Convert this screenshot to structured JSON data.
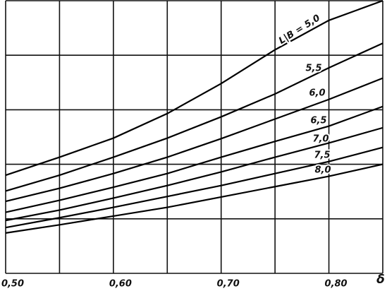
{
  "chart_data": {
    "type": "line",
    "x_label": "δ",
    "x": [
      0.5,
      0.55,
      0.6,
      0.65,
      0.7,
      0.75,
      0.8,
      0.85
    ],
    "xlim": [
      0.5,
      0.85
    ],
    "xticks": [
      {
        "value": 0.5,
        "label": "0,50"
      },
      {
        "value": 0.6,
        "label": "0,60"
      },
      {
        "value": 0.7,
        "label": "0,70"
      },
      {
        "value": 0.8,
        "label": "0,80"
      }
    ],
    "xgrid": [
      0.5,
      0.55,
      0.6,
      0.65,
      0.7,
      0.75,
      0.8,
      0.85
    ],
    "ylim": [
      0,
      5
    ],
    "yticks": [
      0,
      1,
      2,
      3,
      4,
      5
    ],
    "grid": true,
    "series": [
      {
        "name": "L|B = 5,0",
        "color": "#000000",
        "values": [
          1.8,
          2.13,
          2.48,
          2.93,
          3.48,
          4.1,
          4.64,
          5.0
        ]
      },
      {
        "name": "5,5",
        "color": "#000000",
        "values": [
          1.51,
          1.8,
          2.13,
          2.48,
          2.87,
          3.29,
          3.77,
          4.22
        ]
      },
      {
        "name": "6,0",
        "color": "#000000",
        "values": [
          1.32,
          1.56,
          1.83,
          2.13,
          2.47,
          2.83,
          3.19,
          3.58
        ]
      },
      {
        "name": "6,5",
        "color": "#000000",
        "values": [
          1.12,
          1.34,
          1.58,
          1.83,
          2.13,
          2.42,
          2.7,
          3.06
        ]
      },
      {
        "name": "7,0",
        "color": "#000000",
        "values": [
          0.97,
          1.16,
          1.38,
          1.61,
          1.86,
          2.13,
          2.39,
          2.67
        ]
      },
      {
        "name": "7,5",
        "color": "#000000",
        "values": [
          0.84,
          1.02,
          1.21,
          1.41,
          1.61,
          1.83,
          2.05,
          2.31
        ]
      },
      {
        "name": "8,0",
        "color": "#000000",
        "values": [
          0.74,
          0.89,
          1.05,
          1.21,
          1.4,
          1.59,
          1.78,
          2.0
        ]
      }
    ]
  }
}
